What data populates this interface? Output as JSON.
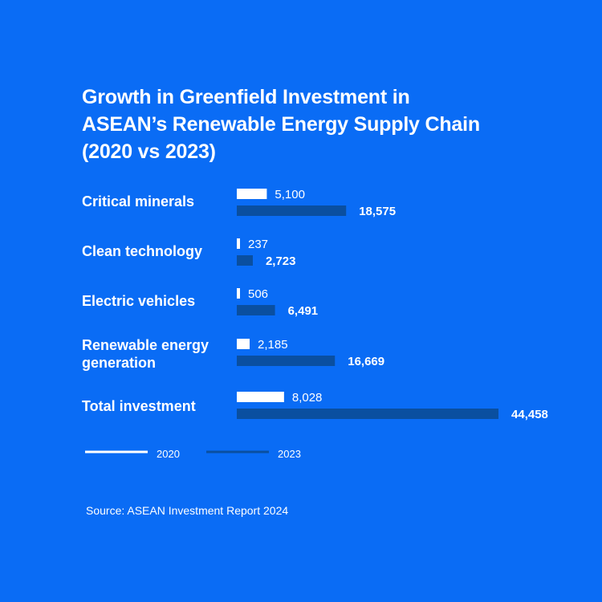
{
  "title_lines": [
    "Growth in Greenfield Investment in",
    "ASEAN’s Renewable Energy Supply Chain",
    "(2020 vs 2023)"
  ],
  "source": "Source: ASEAN Investment Report 2024",
  "colors": {
    "background": "#0a6cf5",
    "series_2020": "#ffffff",
    "series_2023": "#0a4fa0"
  },
  "chart_data": {
    "type": "bar",
    "orientation": "horizontal",
    "title": "Growth in Greenfield Investment in ASEAN’s Renewable Energy Supply Chain (2020 vs 2023)",
    "categories": [
      [
        "Critical minerals"
      ],
      [
        "Clean technology"
      ],
      [
        "Electric vehicles"
      ],
      [
        "Renewable energy",
        "generation"
      ],
      [
        "Total investment"
      ]
    ],
    "series": [
      {
        "name": "2020",
        "color": "#ffffff",
        "values": [
          5100,
          237,
          506,
          2185,
          8028
        ],
        "labels": [
          "5,100",
          "237",
          "506",
          "2,185",
          "8,028"
        ]
      },
      {
        "name": "2023",
        "color": "#0a4fa0",
        "values": [
          18575,
          2723,
          6491,
          16669,
          44458
        ],
        "labels": [
          "18,575",
          "2,723",
          "6,491",
          "16,669",
          "44,458"
        ]
      }
    ],
    "legend_position": "bottom-left",
    "grid": false
  }
}
